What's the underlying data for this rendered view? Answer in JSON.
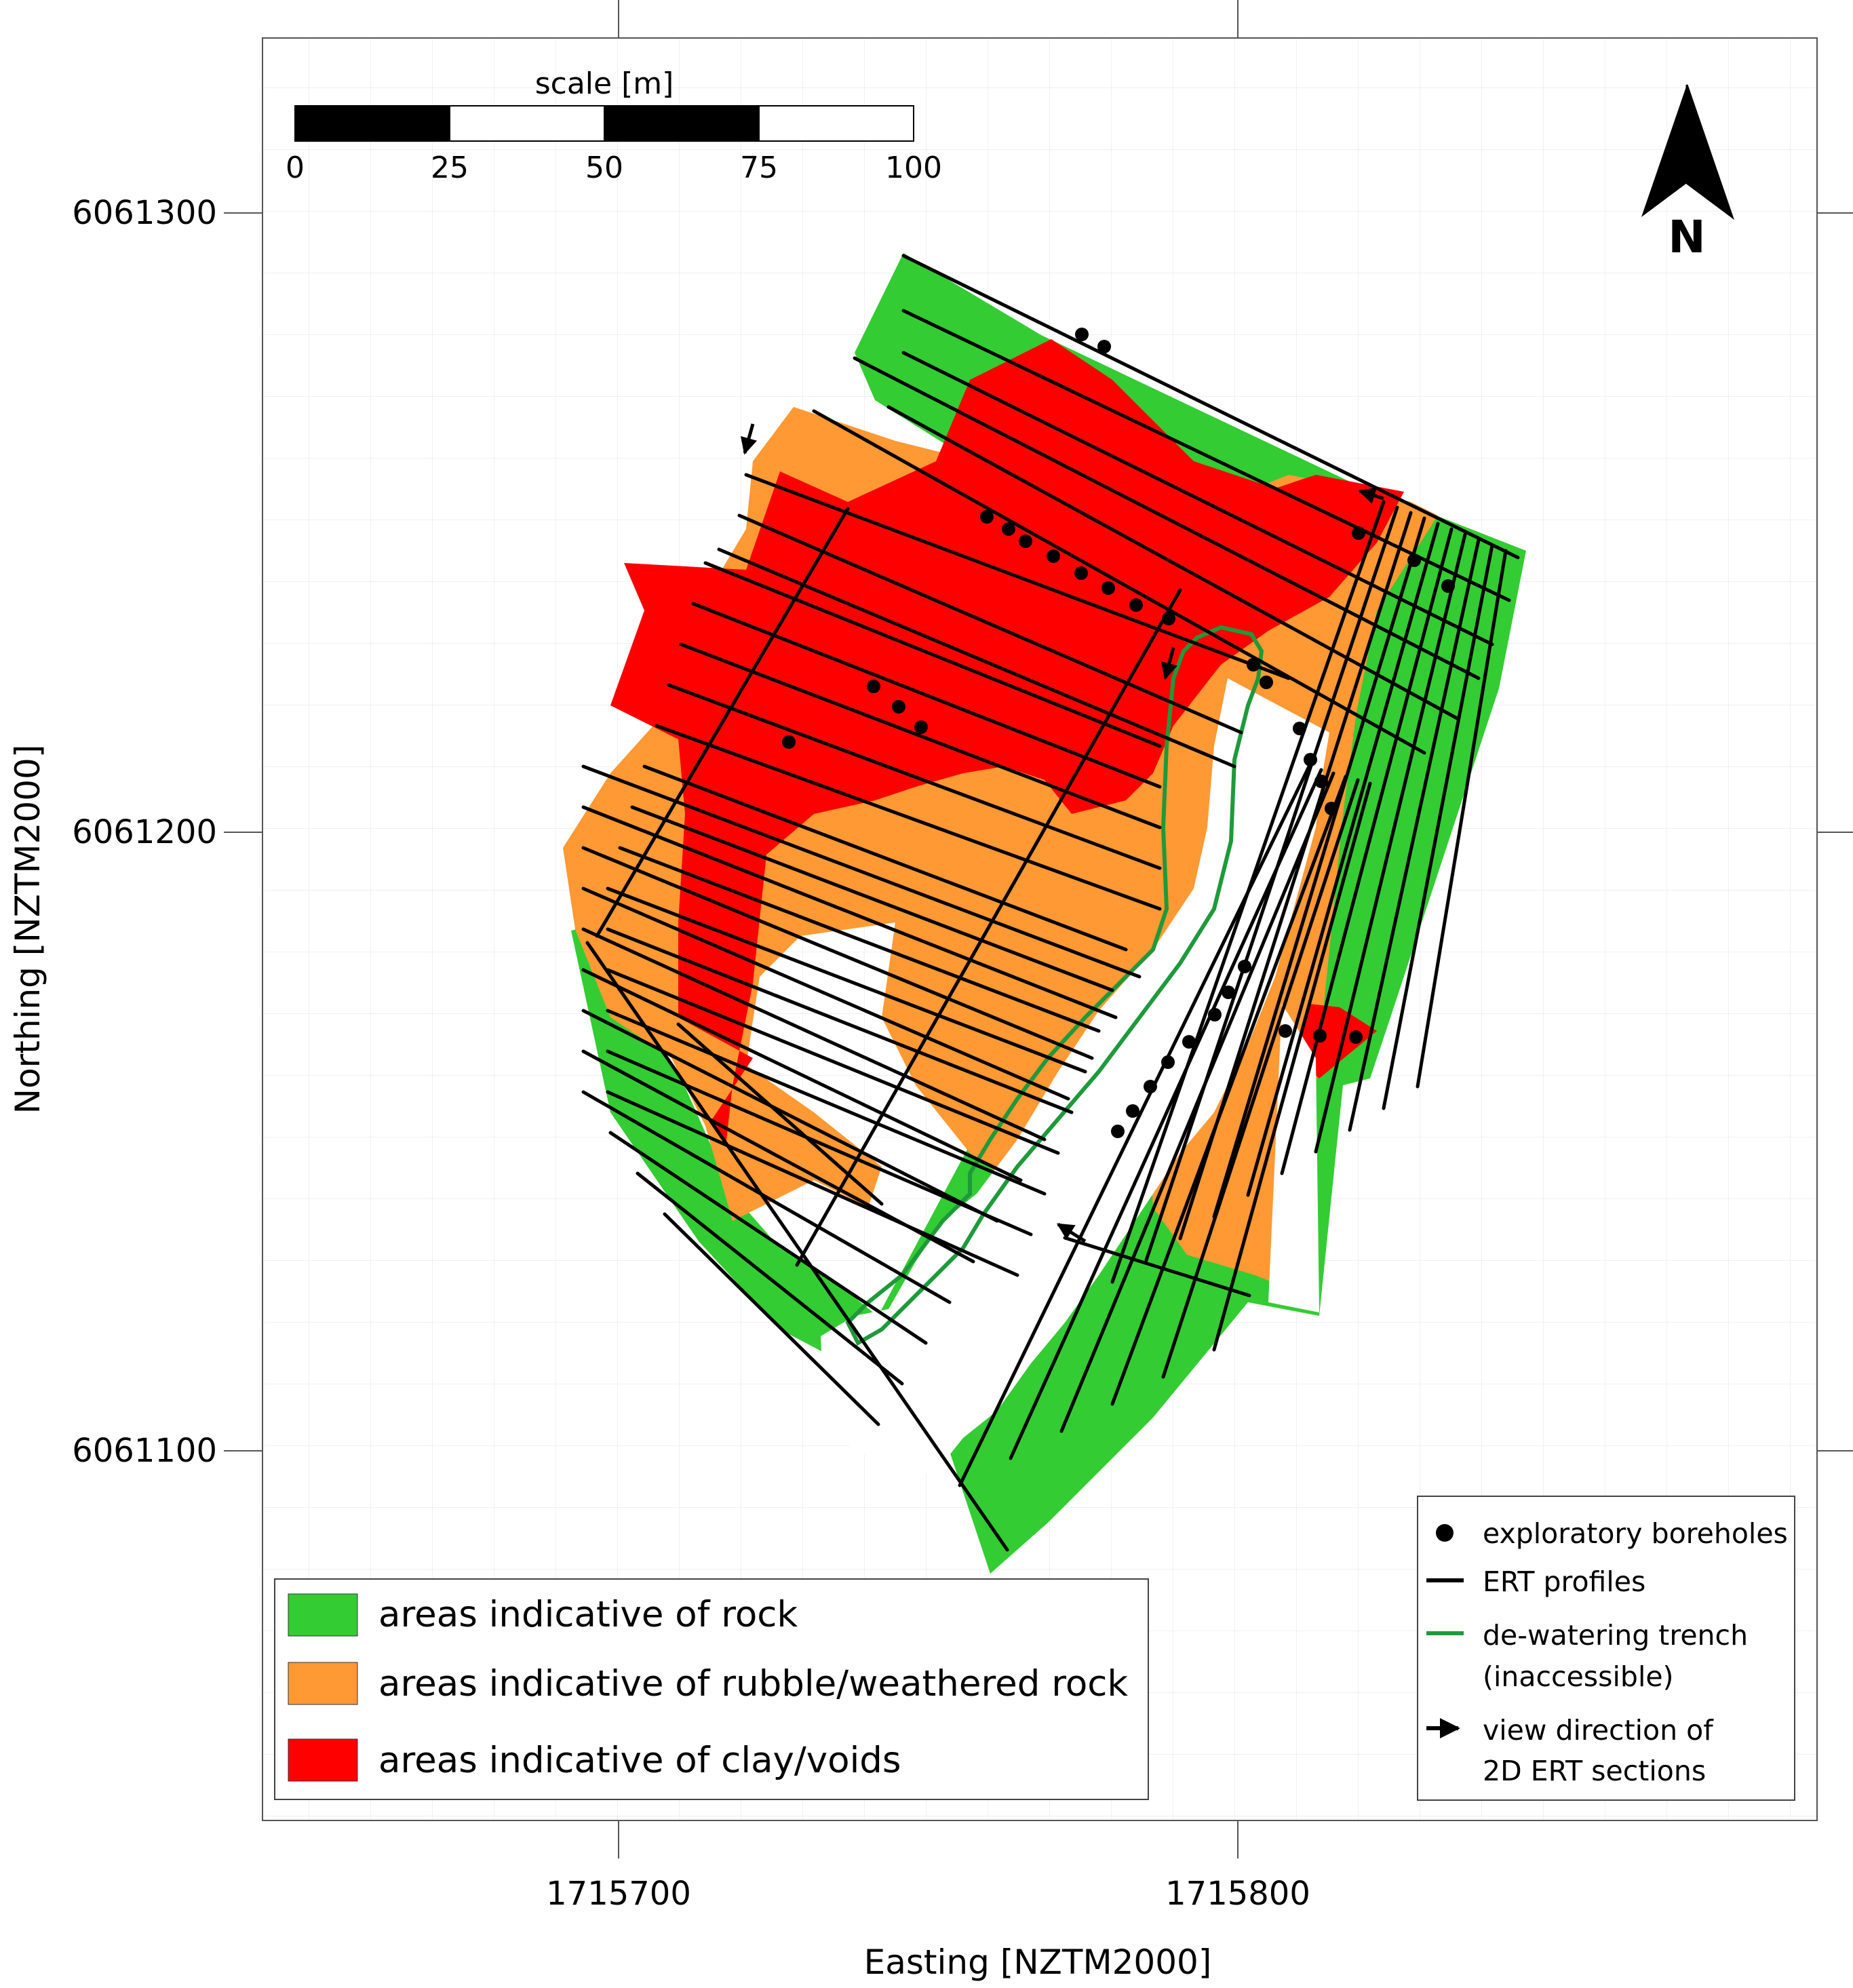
{
  "axes": {
    "xlabel": "Easting [NZTM2000]",
    "ylabel": "Northing [NZTM2000]",
    "x_ticks": [
      "1715700",
      "1715800"
    ],
    "y_ticks": [
      "6061300",
      "6061200",
      "6061100"
    ]
  },
  "scale_bar": {
    "title": "scale [m]",
    "ticks": [
      "0",
      "25",
      "50",
      "75",
      "100"
    ]
  },
  "north_arrow": {
    "label": "N",
    "icon": "north-arrow-icon"
  },
  "legend_zones": {
    "placement": "bottom-left",
    "items": [
      {
        "label": "areas indicative of rock",
        "color": "#33cc33"
      },
      {
        "label": "areas indicative of rubble/weathered rock",
        "color": "#ff9933"
      },
      {
        "label": "areas indicative of clay/voids",
        "color": "#ff0000"
      }
    ]
  },
  "legend_symbols": {
    "placement": "bottom-right",
    "items": [
      {
        "symbol": "dot",
        "line1": "exploratory boreholes",
        "line2": ""
      },
      {
        "symbol": "line-black",
        "line1": "ERT profiles",
        "line2": ""
      },
      {
        "symbol": "line-green",
        "line1": "de-watering trench",
        "line2": "(inaccessible)"
      },
      {
        "symbol": "arrow",
        "line1": "view direction of",
        "line2": "2D ERT sections"
      }
    ]
  },
  "colors": {
    "rock": "#33cc33",
    "rubble": "#ff9933",
    "clay": "#ff0000",
    "trench": "#1e9a3a",
    "profile": "#000000"
  }
}
